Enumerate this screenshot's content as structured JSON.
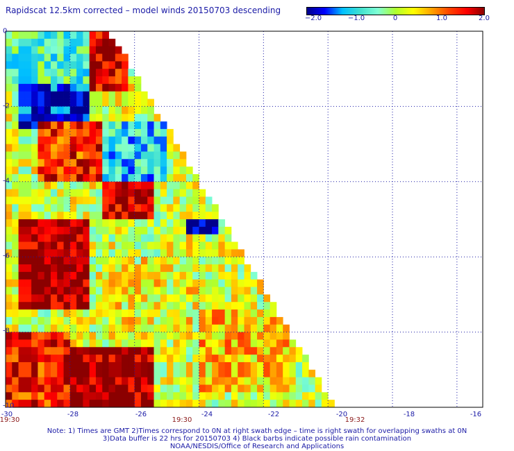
{
  "title": "Rapidscat 12.5km corrected – model winds 20150703 descending",
  "colorbar": {
    "ticks": [
      "−2.0",
      "−1.0",
      "0",
      "1.0",
      "2.0"
    ],
    "stops": [
      "#00008b",
      "#0000ff",
      "#00bfff",
      "#40e0d0",
      "#7fffd4",
      "#adff2f",
      "#ffff00",
      "#ffa500",
      "#ff4500",
      "#ff0000",
      "#8b0000"
    ]
  },
  "axes": {
    "x_ticks": [
      "-30",
      "-28",
      "-26",
      "-24",
      "-22",
      "-20",
      "-18",
      "-16"
    ],
    "y_ticks": [
      "0",
      "-2",
      "-4",
      "-6",
      "-8",
      "-10"
    ]
  },
  "times": {
    "left": "19:30",
    "middle": "19:30",
    "right": "19:32"
  },
  "notes": [
    "Note: 1) Times are GMT 2)Times correspond to 0N at right swath edge – time is right swath for overlapping swaths at 0N",
    "3)Data buffer is 22 hrs for 20150703 4) Black barbs indicate possible rain contamination",
    "NOAA/NESDIS/Office of Research and Applications"
  ],
  "chart_data": {
    "type": "heatmap",
    "title": "Rapidscat 12.5km corrected – model winds 20150703 descending",
    "xlabel": "",
    "ylabel": "",
    "xlim": [
      -30,
      -15.2
    ],
    "ylim": [
      -10,
      0
    ],
    "grid": true,
    "value_range": [
      -2.0,
      2.0
    ],
    "swath_edge": {
      "lon_at_lat0": -26.8,
      "lon_at_lat_minus10": -19.8
    },
    "regions": [
      {
        "lat": [
          0,
          -1.5
        ],
        "lon": [
          -30,
          -27.5
        ],
        "value": -0.6
      },
      {
        "lat": [
          0,
          -1.5
        ],
        "lon": [
          -27.5,
          -26.3
        ],
        "value": 1.7
      },
      {
        "lat": [
          -1.5,
          -2.5
        ],
        "lon": [
          -29.5,
          -27.5
        ],
        "value": -1.6
      },
      {
        "lat": [
          -2.5,
          -4
        ],
        "lon": [
          -29,
          -27
        ],
        "value": 1.4
      },
      {
        "lat": [
          -2.5,
          -4
        ],
        "lon": [
          -27,
          -25
        ],
        "value": -0.9
      },
      {
        "lat": [
          -4,
          -5
        ],
        "lon": [
          -27,
          -25.5
        ],
        "value": 1.8
      },
      {
        "lat": [
          -5,
          -5.5
        ],
        "lon": [
          -24.5,
          -23.5
        ],
        "value": -2.0
      },
      {
        "lat": [
          -5,
          -7.5
        ],
        "lon": [
          -29.5,
          -27.5
        ],
        "value": 2.0
      },
      {
        "lat": [
          -6,
          -8
        ],
        "lon": [
          -27,
          -24
        ],
        "value": 0.3
      },
      {
        "lat": [
          -8,
          -10
        ],
        "lon": [
          -30,
          -28
        ],
        "value": 1.5
      },
      {
        "lat": [
          -8.5,
          -10
        ],
        "lon": [
          -28,
          -25.5
        ],
        "value": 2.0
      },
      {
        "lat": [
          -7.5,
          -9.5
        ],
        "lon": [
          -24,
          -21
        ],
        "value": 0.6
      }
    ]
  }
}
